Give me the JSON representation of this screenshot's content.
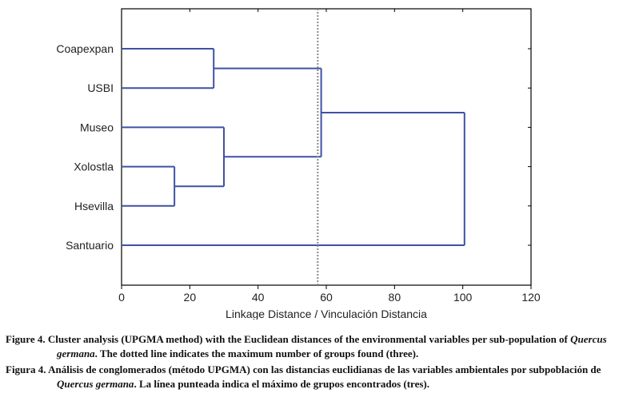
{
  "chart_data": {
    "type": "dendrogram",
    "method": "UPGMA",
    "leaves": [
      "Coapexpan",
      "USBI",
      "Museo",
      "Xolostla",
      "Hsevilla",
      "Santuario"
    ],
    "merges": [
      {
        "a": "Xolostla",
        "b": "Hsevilla",
        "height": 15.5
      },
      {
        "a": "Coapexpan",
        "b": "USBI",
        "height": 27.0
      },
      {
        "a": "Museo",
        "b": "Xolostla+Hsevilla",
        "height": 30.0
      },
      {
        "a": "Coapexpan+USBI",
        "b": "Museo+Xolostla+Hsevilla",
        "height": 58.5
      },
      {
        "a": "Coapexpan+USBI+Museo+Xolostla+Hsevilla",
        "b": "Santuario",
        "height": 100.5
      }
    ],
    "cutoff": 57.5,
    "xlabel": "Linkage Distance / Vinculación Distancia",
    "xlim": [
      0,
      120
    ],
    "xticks": [
      "0",
      "20",
      "40",
      "60",
      "80",
      "100",
      "120"
    ],
    "line_color": "#3f51a3",
    "cutoff_color": "#888888"
  },
  "caption": {
    "en_prefix": "Figure 4. Cluster analysis (UPGMA method) with the Euclidean distances of the environmental variables per sub-population of ",
    "en_species": "Quercus germana",
    "en_suffix": ". The dotted line indicates the maximum number of groups found (three).",
    "es_prefix": "Figura 4. Análisis de conglomerados (método UPGMA) con las distancias euclidianas de las variables ambientales por subpoblación de ",
    "es_species": "Quercus germana",
    "es_suffix": ". La línea punteada indica el máximo de grupos encontrados (tres)."
  }
}
